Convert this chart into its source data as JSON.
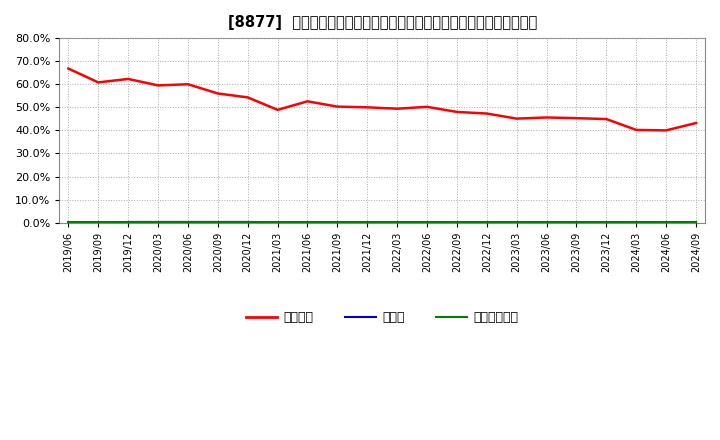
{
  "title": "[8877]  自己資本、のれん、繰延税金資産の総資産に対する比率の推移",
  "x_labels": [
    "2019/06",
    "2019/09",
    "2019/12",
    "2020/03",
    "2020/06",
    "2020/09",
    "2020/12",
    "2021/03",
    "2021/06",
    "2021/09",
    "2021/12",
    "2022/03",
    "2022/06",
    "2022/09",
    "2022/12",
    "2023/03",
    "2023/06",
    "2023/09",
    "2023/12",
    "2024/03",
    "2024/06",
    "2024/09"
  ],
  "equity_ratio": [
    0.668,
    0.608,
    0.623,
    0.595,
    0.6,
    0.56,
    0.543,
    0.489,
    0.526,
    0.503,
    0.5,
    0.494,
    0.502,
    0.48,
    0.473,
    0.451,
    0.456,
    0.453,
    0.449,
    0.402,
    0.4,
    0.432
  ],
  "goodwill_ratio": [
    0.0,
    0.0,
    0.003,
    0.003,
    0.003,
    0.003,
    0.003,
    0.002,
    0.002,
    0.002,
    0.002,
    0.002,
    0.002,
    0.002,
    0.001,
    0.001,
    0.001,
    0.001,
    0.001,
    0.001,
    0.001,
    0.0
  ],
  "deferred_tax_ratio": [
    0.005,
    0.005,
    0.005,
    0.005,
    0.005,
    0.005,
    0.005,
    0.005,
    0.005,
    0.005,
    0.005,
    0.005,
    0.005,
    0.005,
    0.005,
    0.005,
    0.005,
    0.005,
    0.005,
    0.005,
    0.005,
    0.005
  ],
  "equity_color": "#ff0000",
  "goodwill_color": "#0000cc",
  "deferred_tax_color": "#008000",
  "bg_color": "#ffffff",
  "plot_bg_color": "#ffffff",
  "grid_color": "#aaaaaa",
  "ylim": [
    0.0,
    0.8
  ],
  "yticks": [
    0.0,
    0.1,
    0.2,
    0.3,
    0.4,
    0.5,
    0.6,
    0.7,
    0.8
  ],
  "legend_labels": [
    "自己資本",
    "のれん",
    "繰延税金資産"
  ]
}
